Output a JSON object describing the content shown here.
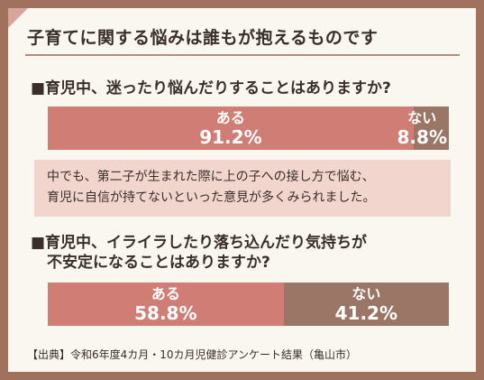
{
  "title": "子育てに関する悩みは誰もが抱えるものです",
  "colors": {
    "yes": "#cf7d75",
    "no": "#9b7565",
    "note_bg": "#f2d6cd",
    "frame": "#a0725e"
  },
  "note": {
    "line1": "中でも、第二子が生まれた際に上の子への接し方で悩む、",
    "line2": "育児に自信が持てないといった意見が多くみられました。"
  },
  "source": "【出典】令和6年度4カ月・10カ月児健診アンケート結果（亀山市）",
  "chart_data": [
    {
      "type": "bar",
      "title": "■育児中、迷ったり悩んだりすることはありますか?",
      "categories": [
        "ある",
        "ない"
      ],
      "values": [
        91.2,
        8.8
      ],
      "value_labels": [
        "91.2%",
        "8.8%"
      ],
      "stacked": true,
      "orientation": "horizontal"
    },
    {
      "type": "bar",
      "title_line1": "■育児中、イライラしたり落ち込んだり気持ちが",
      "title_line2": "不安定になることはありますか?",
      "categories": [
        "ある",
        "ない"
      ],
      "values": [
        58.8,
        41.2
      ],
      "value_labels": [
        "58.8%",
        "41.2%"
      ],
      "stacked": true,
      "orientation": "horizontal"
    }
  ]
}
